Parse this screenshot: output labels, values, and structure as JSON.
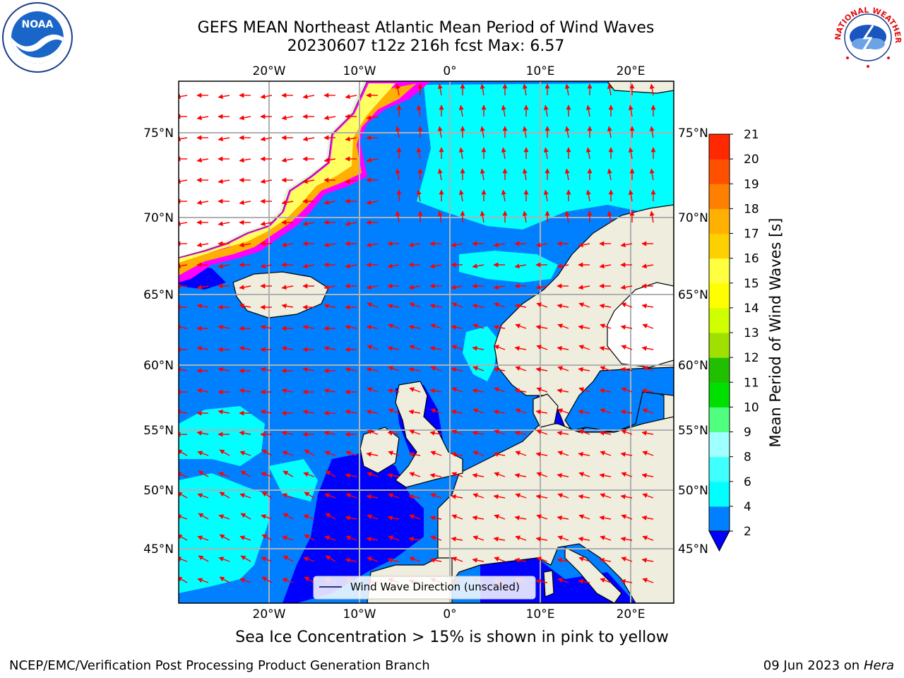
{
  "header": {
    "title_line1": "GEFS MEAN Northeast Atlantic Mean Period of Wind Waves",
    "title_line2": "20230607 t12z 216h fcst   Max: 6.57"
  },
  "logos": {
    "left": "NOAA",
    "right": "NATIONAL WEATHER SERVICE"
  },
  "map": {
    "lon_ticks": [
      "20°W",
      "10°W",
      "0°",
      "10°E",
      "20°E"
    ],
    "lat_ticks": [
      "75°N",
      "70°N",
      "65°N",
      "60°N",
      "55°N",
      "50°N",
      "45°N"
    ],
    "legend_label": "Wind Wave Direction (unscaled)",
    "colors": {
      "land": "#efedde",
      "ocean_2_4": "#0080ff",
      "ocean_lt2": "#0000ff",
      "ocean_4_6": "#00ffff",
      "ice_edge": "#ff00ff",
      "ice_mid": "#ffb000",
      "ice_inner": "#ffff40",
      "arrow": "#ff0000",
      "grid": "#b0b0b0"
    }
  },
  "colorbar": {
    "label": "Mean Period of Wind Waves [s]",
    "ticks": [
      "2",
      "4",
      "6",
      "8",
      "9",
      "10",
      "11",
      "12",
      "13",
      "14",
      "15",
      "16",
      "17",
      "18",
      "19",
      "20",
      "21"
    ],
    "colors": [
      "#0080ff",
      "#00ffff",
      "#40ffff",
      "#a0ffff",
      "#50ff80",
      "#00e000",
      "#20c000",
      "#a0e000",
      "#d0ff00",
      "#ffff00",
      "#ffff40",
      "#ffd000",
      "#ffb000",
      "#ff8000",
      "#ff5000",
      "#ff2800",
      "#ff0000"
    ],
    "extend_color": "#0000ff"
  },
  "footer": {
    "caption": "Sea Ice Concentration > 15% is shown in pink to yellow",
    "credit_left": "NCEP/EMC/Verification Post Processing Product Generation Branch",
    "credit_date": "09 Jun 2023 on",
    "credit_host": "Hera"
  }
}
